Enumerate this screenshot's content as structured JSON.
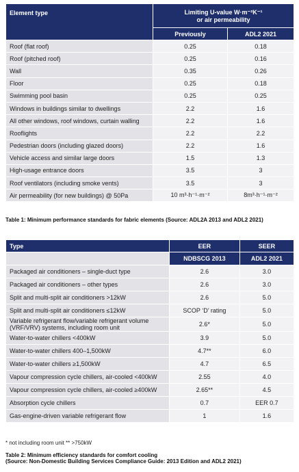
{
  "table1": {
    "header": {
      "element_type": "Element type",
      "limiting": [
        "Limiting U-value W·m⁻²K⁻¹",
        "or air permeability"
      ],
      "previously": "Previously",
      "adl2": "ADL2 2021"
    },
    "rows": [
      [
        "Roof (flat roof)",
        "0.25",
        "0.18"
      ],
      [
        "Roof (pitched roof)",
        "0.25",
        "0.16"
      ],
      [
        "Wall",
        "0.35",
        "0.26"
      ],
      [
        "Floor",
        "0.25",
        "0.18"
      ],
      [
        "Swimming pool basin",
        "0.25",
        "0.25"
      ],
      [
        "Windows in buildings similar to dwellings",
        "2.2",
        "1.6"
      ],
      [
        "All other windows, roof windows, curtain walling",
        "2.2",
        "1.6"
      ],
      [
        "Rooflights",
        "2.2",
        "2.2"
      ],
      [
        "Pedestrian doors (including glazed doors)",
        "2.2",
        "1.6"
      ],
      [
        "Vehicle access and similar large doors",
        "1.5",
        "1.3"
      ],
      [
        "High-usage entrance doors",
        "3.5",
        "3"
      ],
      [
        "Roof ventilators (including smoke vents)",
        "3.5",
        "3"
      ],
      [
        "Air permeability (for new buildings) @ 50Pa",
        "10 m³·h⁻¹·m⁻²",
        "8m³·h⁻¹·m⁻²"
      ]
    ],
    "caption": "Table 1:  Minimum performance standards for fabric elements (Source: ADL2A 2013 and ADL2 2021)"
  },
  "table2": {
    "header": {
      "type": "Type",
      "eer": "EER",
      "seer": "SEER",
      "ndbscg": "NDBSCG 2013",
      "adl2": "ADL2 2021"
    },
    "rows": [
      [
        "Packaged air conditioners – single-duct type",
        "2.6",
        "3.0"
      ],
      [
        "Packaged air conditioners – other types",
        "2.6",
        "3.0"
      ],
      [
        "Split and multi-split air conditioners >12kW",
        "2.6",
        "5.0"
      ],
      [
        "Split and multi-split air conditioners ≤12kW",
        "SCOP ‘D’ rating",
        "5.0"
      ],
      [
        "Variable refrigerant flow/variable refrigerant volume (VRF/VRV) systems, including room unit",
        "2.6*",
        "5.0"
      ],
      [
        "Water-to-water chillers <400kW",
        "3.9",
        "5.0"
      ],
      [
        "Water-to-water chillers 400–1,500kW",
        "4.7**",
        "6.0"
      ],
      [
        "Water-to-water chillers ≥1,500kW",
        "4.7",
        "6.5"
      ],
      [
        "Vapour compression cycle chillers, air-cooled <400kW",
        "2.55",
        "4.0"
      ],
      [
        "Vapour compression cycle chillers, air-cooled ≥400kW",
        "2.65**",
        "4.5"
      ],
      [
        "Absorption cycle chillers",
        "0.7",
        "EER 0.7"
      ],
      [
        "Gas-engine-driven variable refrigerant flow",
        "1",
        "1.6"
      ]
    ],
    "footnote": "* not including room unit     ** >750kW",
    "caption": [
      "Table 2: Minimum efficiency standards for comfort cooling",
      "(Source: Non-Domestic Building Services Compliance Guide: 2013 Edition and ADL2 2021)"
    ]
  }
}
